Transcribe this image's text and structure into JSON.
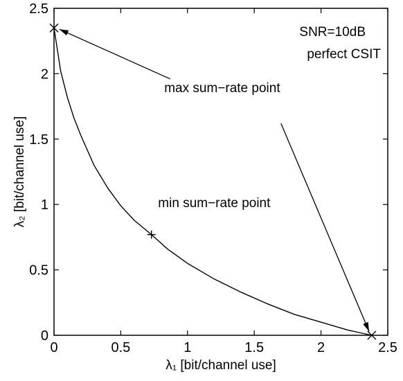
{
  "chart_data": {
    "type": "line",
    "title": "",
    "xlabel": "λ₁  [bit/channel use]",
    "ylabel": "λ₂  [bit/channel use]",
    "xlim": [
      0,
      2.5
    ],
    "ylim": [
      0,
      2.5
    ],
    "xticks": [
      "0",
      "0.5",
      "1",
      "1.5",
      "2",
      "2.5"
    ],
    "yticks": [
      "0",
      "0.5",
      "1",
      "1.5",
      "2",
      "2.5"
    ],
    "grid": false,
    "legend": "none",
    "series": [
      {
        "x": [
          0.0,
          0.05,
          0.1,
          0.15,
          0.2,
          0.3,
          0.4,
          0.5,
          0.6,
          0.73,
          0.85,
          1.0,
          1.2,
          1.4,
          1.6,
          1.8,
          2.0,
          2.2,
          2.38
        ],
        "y": [
          2.35,
          2.02,
          1.82,
          1.66,
          1.53,
          1.3,
          1.13,
          0.99,
          0.88,
          0.77,
          0.66,
          0.55,
          0.43,
          0.33,
          0.24,
          0.16,
          0.1,
          0.04,
          0.0
        ]
      }
    ],
    "markers": [
      {
        "symbol": "x",
        "x": 0.0,
        "y": 2.35
      },
      {
        "symbol": "x",
        "x": 2.38,
        "y": 0.0
      },
      {
        "symbol": "+",
        "x": 0.73,
        "y": 0.77
      }
    ],
    "annotations": [
      {
        "text": "SNR=10dB",
        "position": "top-right"
      },
      {
        "text": "perfect CSIT",
        "position": "top-right"
      },
      {
        "text": "max sum−rate point",
        "x": 1.26,
        "y": 1.86
      },
      {
        "text": "min sum−rate point",
        "x": 1.2,
        "y": 0.98
      }
    ],
    "arrows": [
      {
        "from": [
          0.87,
          1.96
        ],
        "to": [
          0.04,
          2.34
        ]
      },
      {
        "from": [
          1.7,
          1.62
        ],
        "to": [
          2.36,
          0.03
        ]
      }
    ]
  }
}
